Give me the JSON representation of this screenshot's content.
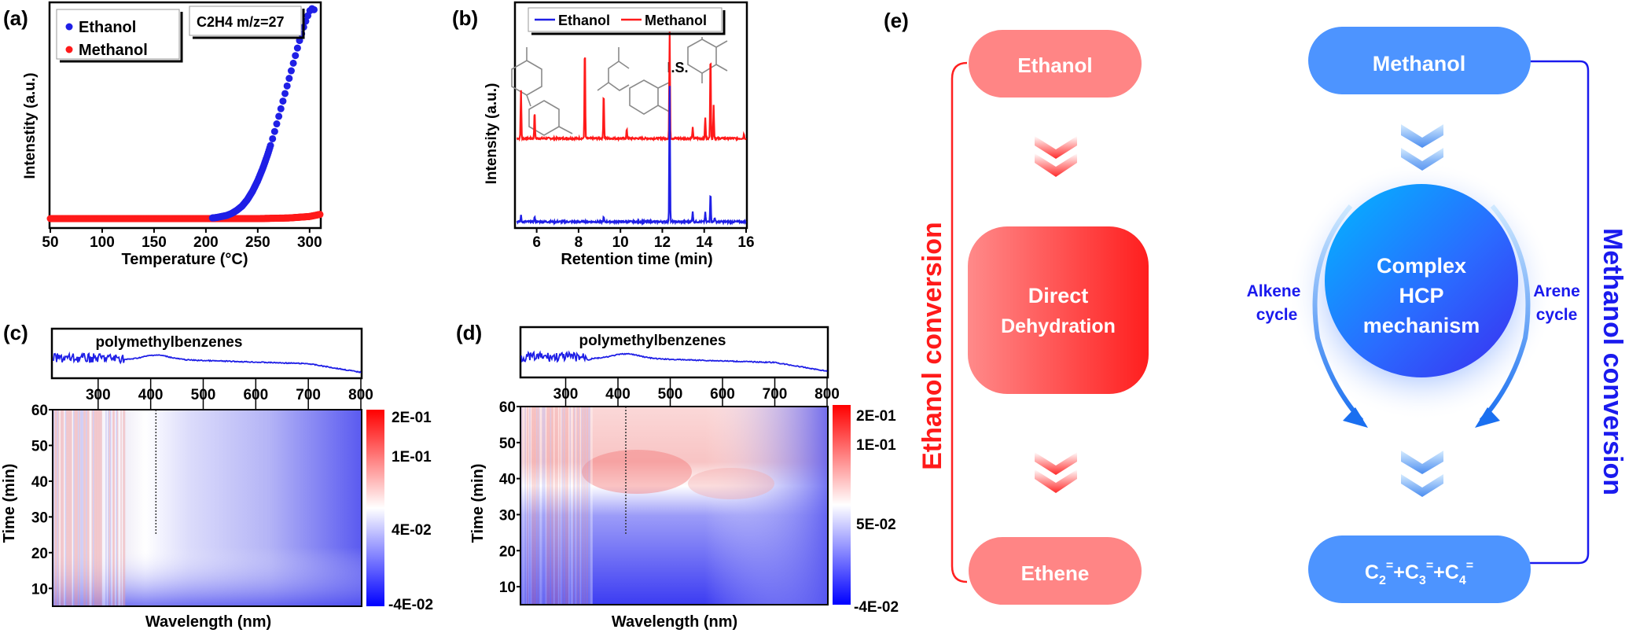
{
  "chart_data": [
    {
      "id": "a",
      "panel_label": "(a)",
      "type": "scatter",
      "xlabel": "Temperature (°C)",
      "ylabel": "Intenstity (a.u.)",
      "xlim": [
        50,
        310
      ],
      "ylim": [
        0,
        1.0
      ],
      "xticks": [
        50,
        100,
        150,
        200,
        250,
        300
      ],
      "annotation": "C2H4 m/z=27",
      "legend_position": "top-left",
      "colors": {
        "Ethanol": "#1f1fe6",
        "Methanol": "#ff1a1a"
      },
      "series": [
        {
          "name": "Ethanol",
          "x": [
            200,
            210,
            220,
            225,
            230,
            235,
            240,
            245,
            250,
            255,
            260,
            265,
            270,
            275,
            280,
            285,
            290,
            295,
            300,
            303,
            306
          ],
          "y": [
            0.0,
            0.005,
            0.015,
            0.025,
            0.04,
            0.06,
            0.09,
            0.13,
            0.18,
            0.24,
            0.31,
            0.39,
            0.48,
            0.57,
            0.66,
            0.75,
            0.84,
            0.92,
            0.985,
            1.0,
            0.98
          ]
        },
        {
          "name": "Methanol",
          "x": [
            50,
            100,
            150,
            200,
            250,
            280,
            300,
            310
          ],
          "y": [
            0,
            0,
            0,
            0,
            0,
            0.003,
            0.01,
            0.02
          ]
        }
      ]
    },
    {
      "id": "b",
      "panel_label": "(b)",
      "type": "line",
      "xlabel": "Retention time (min)",
      "ylabel": "Intensity (a.u.)",
      "xlim": [
        5,
        16
      ],
      "xticks": [
        6,
        8,
        10,
        12,
        14,
        16
      ],
      "peak_label": "I.S.",
      "legend_position": "top",
      "colors": {
        "Ethanol": "#1f1fe6",
        "Methanol": "#ff1a1a"
      },
      "series": [
        {
          "name": "Methanol",
          "baseline": 0.55,
          "peaks": [
            [
              5.25,
              0.32
            ],
            [
              5.9,
              0.18
            ],
            [
              8.3,
              0.62
            ],
            [
              9.2,
              0.31
            ],
            [
              10.3,
              0.06
            ],
            [
              12.35,
              0.7
            ],
            [
              13.45,
              0.07
            ],
            [
              14.05,
              0.14
            ],
            [
              14.3,
              0.58
            ],
            [
              14.45,
              0.22
            ],
            [
              15.9,
              0.03
            ]
          ]
        },
        {
          "name": "Ethanol",
          "baseline": 0.0,
          "peaks": [
            [
              5.25,
              0.04
            ],
            [
              5.9,
              0.03
            ],
            [
              9.2,
              0.03
            ],
            [
              12.35,
              0.9
            ],
            [
              13.45,
              0.07
            ],
            [
              14.05,
              0.06
            ],
            [
              14.3,
              0.2
            ],
            [
              14.5,
              0.03
            ]
          ]
        }
      ]
    },
    {
      "id": "c",
      "panel_label": "(c)",
      "type": "heatmap",
      "top_spectrum_label": "polymethylbenzenes",
      "xlabel": "Wavelength (nm)",
      "ylabel": "Time (min)",
      "xlim": [
        215,
        800
      ],
      "ylim": [
        5,
        60
      ],
      "xticks": [
        300,
        400,
        500,
        600,
        700,
        800
      ],
      "yticks": [
        10,
        20,
        30,
        40,
        50,
        60
      ],
      "marker_wavelength": 410,
      "colorbar": {
        "max_label": "2E-01",
        "ticks": [
          "2E-01",
          "1E-01",
          "4E-02",
          "-4E-02"
        ],
        "min": -0.04,
        "max": 0.2
      }
    },
    {
      "id": "d",
      "panel_label": "(d)",
      "type": "heatmap",
      "top_spectrum_label": "polymethylbenzenes",
      "xlabel": "Wavelength (nm)",
      "ylabel": "Time (min)",
      "xlim": [
        215,
        800
      ],
      "ylim": [
        5,
        60
      ],
      "xticks": [
        300,
        400,
        500,
        600,
        700,
        800
      ],
      "yticks": [
        10,
        20,
        30,
        40,
        50,
        60
      ],
      "marker_wavelength": 415,
      "colorbar": {
        "ticks": [
          "2E-01",
          "1E-01",
          "5E-02",
          "-4E-02"
        ],
        "min": -0.04,
        "max": 0.2
      }
    }
  ],
  "diagram": {
    "panel_label": "(e)",
    "ethanol_path": {
      "side_label": "Ethanol conversion",
      "nodes": [
        "Ethanol",
        "Direct Dehydration",
        "Ethene"
      ],
      "direct_line1": "Direct",
      "direct_line2": "Dehydration"
    },
    "methanol_path": {
      "side_label": "Methanol conversion",
      "start": "Methanol",
      "core_line1": "Complex",
      "core_line2": "HCP",
      "core_line3": "mechanism",
      "left_cycle_line1": "Alkene",
      "left_cycle_line2": "cycle",
      "right_cycle_line1": "Arene",
      "right_cycle_line2": "cycle",
      "product": {
        "c": "C",
        "s2": "2",
        "s3": "3",
        "s4": "4",
        "eq": "=",
        "plus": "+"
      }
    },
    "colors": {
      "red": "#ff2020",
      "red_light": "#ff8585",
      "blue": "#1a1aee",
      "blue_light": "#4d94ff"
    }
  }
}
